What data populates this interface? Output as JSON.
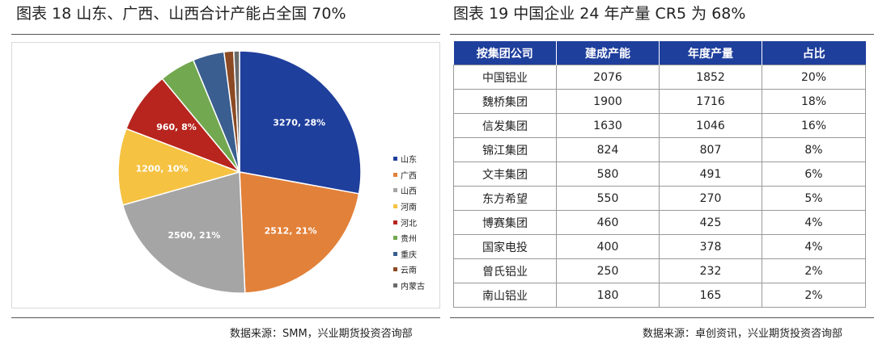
{
  "left_title": "图表 18 山东、广西、山西合计产能占全国 70%",
  "right_title": "图表 19 中国企业 24 年产量 CR5 为 68%",
  "left_source": "数据来源：SMM，兴业期货投资咨询部",
  "right_source": "数据来源：卓创资讯，兴业期货投资咨询部",
  "chart_data": [
    {
      "type": "pie",
      "title": "",
      "categories": [
        "山东",
        "广西",
        "山西",
        "河南",
        "河北",
        "贵州",
        "重庆",
        "云南",
        "内蒙古"
      ],
      "values": [
        3270,
        2512,
        2500,
        1200,
        960,
        560,
        490,
        150,
        90
      ],
      "data_labels": [
        "3270, 28%",
        "2512, 21%",
        "2500, 21%",
        "1200, 10%",
        "960, 8%",
        "",
        "",
        "",
        ""
      ],
      "colors": [
        "#1f3f9c",
        "#e2813a",
        "#a5a5a5",
        "#f5c242",
        "#b7251e",
        "#72a84f",
        "#3a5e8f",
        "#8b4a24",
        "#6b6b6b"
      ],
      "legend_position": "right"
    },
    {
      "type": "table",
      "columns": [
        "按集团公司",
        "建成产能",
        "年度产量",
        "占比"
      ],
      "rows": [
        [
          "中国铝业",
          "2076",
          "1852",
          "20%"
        ],
        [
          "魏桥集团",
          "1900",
          "1716",
          "18%"
        ],
        [
          "信发集团",
          "1630",
          "1046",
          "16%"
        ],
        [
          "锦江集团",
          "824",
          "807",
          "8%"
        ],
        [
          "文丰集团",
          "580",
          "491",
          "6%"
        ],
        [
          "东方希望",
          "550",
          "270",
          "5%"
        ],
        [
          "博赛集团",
          "460",
          "425",
          "4%"
        ],
        [
          "国家电投",
          "400",
          "378",
          "4%"
        ],
        [
          "曾氏铝业",
          "250",
          "232",
          "2%"
        ],
        [
          "南山铝业",
          "180",
          "165",
          "2%"
        ]
      ],
      "header_color": "#1f3f9c"
    }
  ]
}
